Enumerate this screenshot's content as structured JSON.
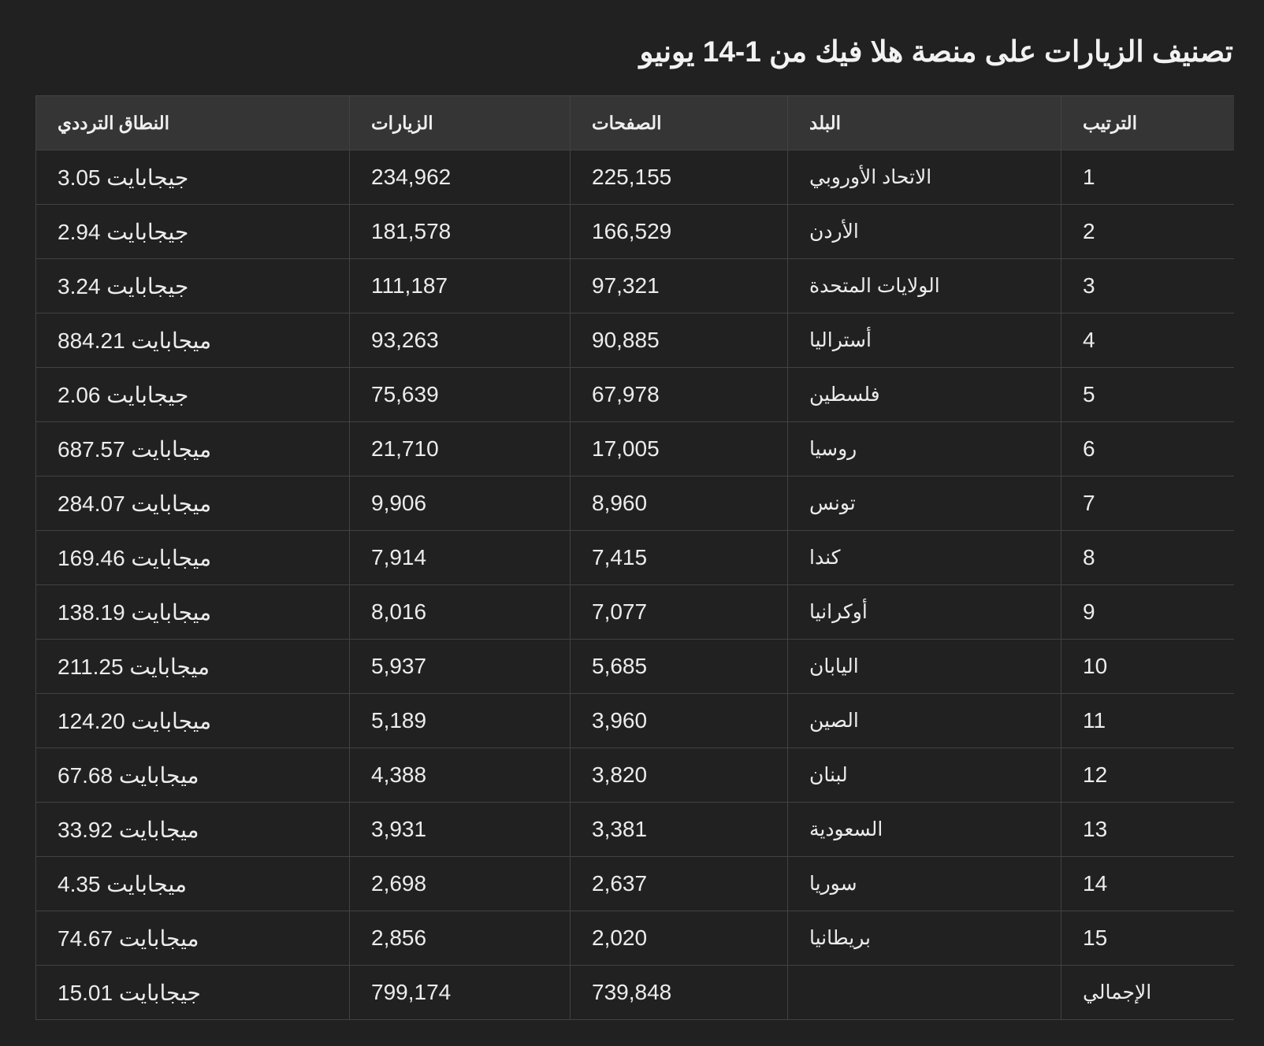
{
  "title": "تصنيف الزيارات على منصة هلا فيك من 1-14 يونيو",
  "table": {
    "headers": [
      "الترتيب",
      "البلد",
      "الصفحات",
      "الزيارات",
      "النطاق الترددي"
    ],
    "rows": [
      [
        "1",
        "الاتحاد الأوروبي",
        "225,155",
        "234,962",
        "3.05 جيجابايت"
      ],
      [
        "2",
        "الأردن",
        "166,529",
        "181,578",
        "2.94 جيجابايت"
      ],
      [
        "3",
        "الولايات المتحدة",
        "97,321",
        "111,187",
        "3.24 جيجابايت"
      ],
      [
        "4",
        "أستراليا",
        "90,885",
        "93,263",
        "884.21 ميجابايت"
      ],
      [
        "5",
        "فلسطين",
        "67,978",
        "75,639",
        "2.06 جيجابايت"
      ],
      [
        "6",
        "روسيا",
        "17,005",
        "21,710",
        "687.57 ميجابايت"
      ],
      [
        "7",
        "تونس",
        "8,960",
        "9,906",
        "284.07 ميجابايت"
      ],
      [
        "8",
        "كندا",
        "7,415",
        "7,914",
        "169.46 ميجابايت"
      ],
      [
        "9",
        "أوكرانيا",
        "7,077",
        "8,016",
        "138.19 ميجابايت"
      ],
      [
        "10",
        "اليابان",
        "5,685",
        "5,937",
        "211.25 ميجابايت"
      ],
      [
        "11",
        "الصين",
        "3,960",
        "5,189",
        "124.20 ميجابايت"
      ],
      [
        "12",
        "لبنان",
        "3,820",
        "4,388",
        "67.68 ميجابايت"
      ],
      [
        "13",
        "السعودية",
        "3,381",
        "3,931",
        "33.92 ميجابايت"
      ],
      [
        "14",
        "سوريا",
        "2,637",
        "2,698",
        "4.35 ميجابايت"
      ],
      [
        "15",
        "بريطانيا",
        "2,020",
        "2,856",
        "74.67 ميجابايت"
      ],
      [
        "الإجمالي",
        "",
        "739,848",
        "799,174",
        "15.01 جيجابايت"
      ]
    ]
  }
}
